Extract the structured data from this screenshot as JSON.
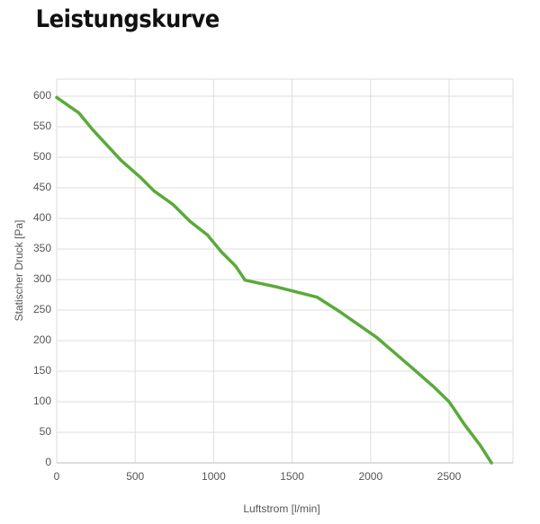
{
  "chart_data": {
    "type": "line",
    "title": "Leistungskurve",
    "x_label": "Luftstrom [l/min]",
    "y_label": "Statischer Druck [Pa]",
    "x": [
      0,
      140,
      230,
      410,
      530,
      620,
      740,
      850,
      960,
      1050,
      1140,
      1200,
      1400,
      1660,
      1800,
      2040,
      2280,
      2400,
      2500,
      2600,
      2700,
      2770
    ],
    "values": [
      598,
      573,
      545,
      495,
      468,
      445,
      423,
      395,
      373,
      345,
      322,
      299,
      288,
      271,
      248,
      205,
      152,
      125,
      100,
      62,
      28,
      0
    ],
    "color": "#5aaa3a",
    "xlim": [
      0,
      2907
    ],
    "ylim": [
      0,
      628
    ],
    "xticks": [
      0,
      500,
      1000,
      1500,
      2000,
      2500
    ],
    "yticks": [
      0,
      50,
      100,
      150,
      200,
      250,
      300,
      350,
      400,
      450,
      500,
      550,
      600
    ],
    "grid": true
  }
}
